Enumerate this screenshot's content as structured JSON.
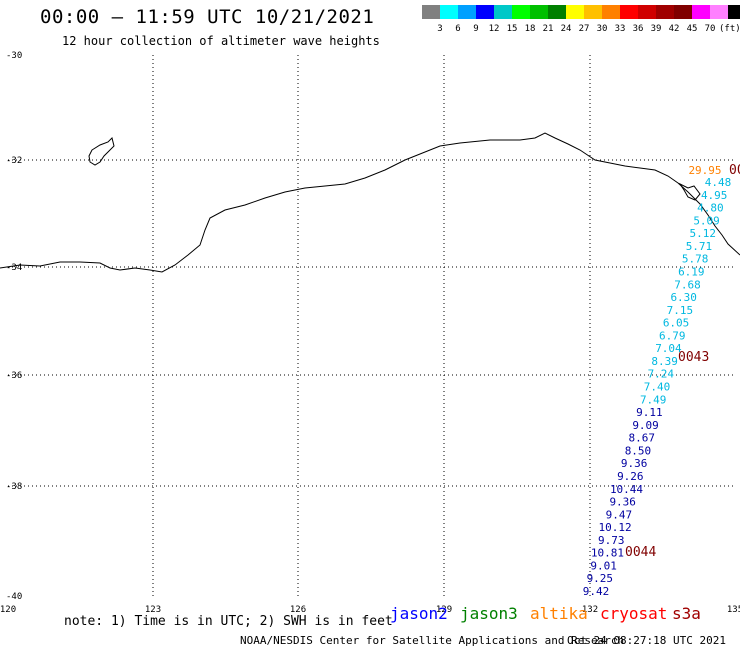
{
  "header": {
    "title": "00:00 – 11:59 UTC 10/21/2021",
    "subtitle": "12 hour collection of altimeter wave heights"
  },
  "scale": {
    "colors": [
      "#808080",
      "#00ffff",
      "#00a0ff",
      "#0000ff",
      "#00c8c8",
      "#00ff00",
      "#00c000",
      "#008000",
      "#ffff00",
      "#ffc000",
      "#ff8000",
      "#ff0000",
      "#d00000",
      "#a00000",
      "#800000",
      "#ff00ff",
      "#ff80ff",
      "#000000"
    ],
    "labels": [
      "3",
      "6",
      "9",
      "12",
      "15",
      "18",
      "21",
      "24",
      "27",
      "30",
      "33",
      "36",
      "39",
      "42",
      "45",
      "70",
      "(ft)"
    ]
  },
  "axes": {
    "lat_labels": [
      "-30",
      "-32",
      "-34",
      "-36",
      "-38",
      "-40"
    ],
    "lon_labels": [
      "120",
      "123",
      "126",
      "129",
      "132",
      "135"
    ]
  },
  "track": {
    "color_light": "#00b8e0",
    "color_dark": "#0000a0",
    "values": [
      "4.48",
      "4.95",
      "4.80",
      "5.09",
      "5.12",
      "5.71",
      "5.78",
      "6.19",
      "7.68",
      "6.30",
      "7.15",
      "6.05",
      "6.79",
      "7.04",
      "8.39",
      "7.24",
      "7.40",
      "7.49",
      "9.11",
      "9.09",
      "8.67",
      "8.50",
      "9.36",
      "9.26",
      "10.44",
      "9.36",
      "9.47",
      "10.12",
      "9.73",
      "10.81",
      "9.01",
      "9.25",
      "9.42"
    ],
    "extra_value": "29.95",
    "extra_color": "#ff8000",
    "times": [
      "0043",
      "0044",
      "00"
    ],
    "time_color": "#800000"
  },
  "footer": {
    "note": "note: 1) Time is in UTC; 2) SWH is in feet",
    "satellites": [
      {
        "name": "jason2",
        "color": "#0000ff"
      },
      {
        "name": "jason3",
        "color": "#008000"
      },
      {
        "name": "altika",
        "color": "#ff8000"
      },
      {
        "name": "cryosat",
        "color": "#ff0000"
      },
      {
        "name": "s3a",
        "color": "#a00000"
      }
    ],
    "credit": "NOAA/NESDIS Center for Satellite Applications and Research",
    "timestamp": "Oct 24 08:27:18 UTC 2021"
  }
}
